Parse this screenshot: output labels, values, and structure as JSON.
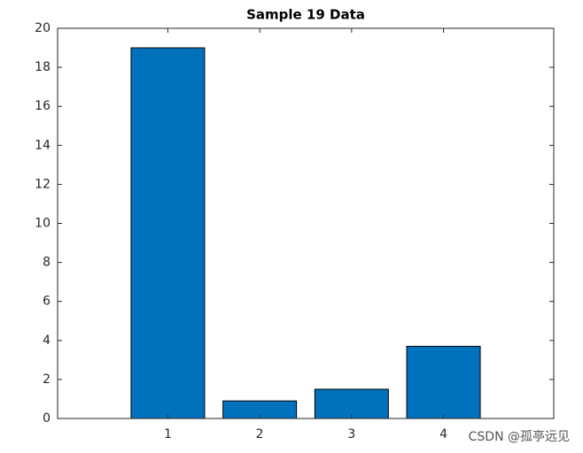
{
  "chart_data": {
    "type": "bar",
    "title": "Sample 19 Data",
    "x": [
      1,
      2,
      3,
      4
    ],
    "values": [
      19,
      0.9,
      1.5,
      3.7
    ],
    "color": "#0072bd",
    "xlim": [
      -0.2,
      5.2
    ],
    "xticks": [
      1,
      2,
      3,
      4
    ],
    "ylim": [
      0,
      20
    ],
    "yticks": [
      0,
      2,
      4,
      6,
      8,
      10,
      12,
      14,
      16,
      18,
      20
    ],
    "grid": false
  },
  "watermark": "CSDN @孤亭远见"
}
